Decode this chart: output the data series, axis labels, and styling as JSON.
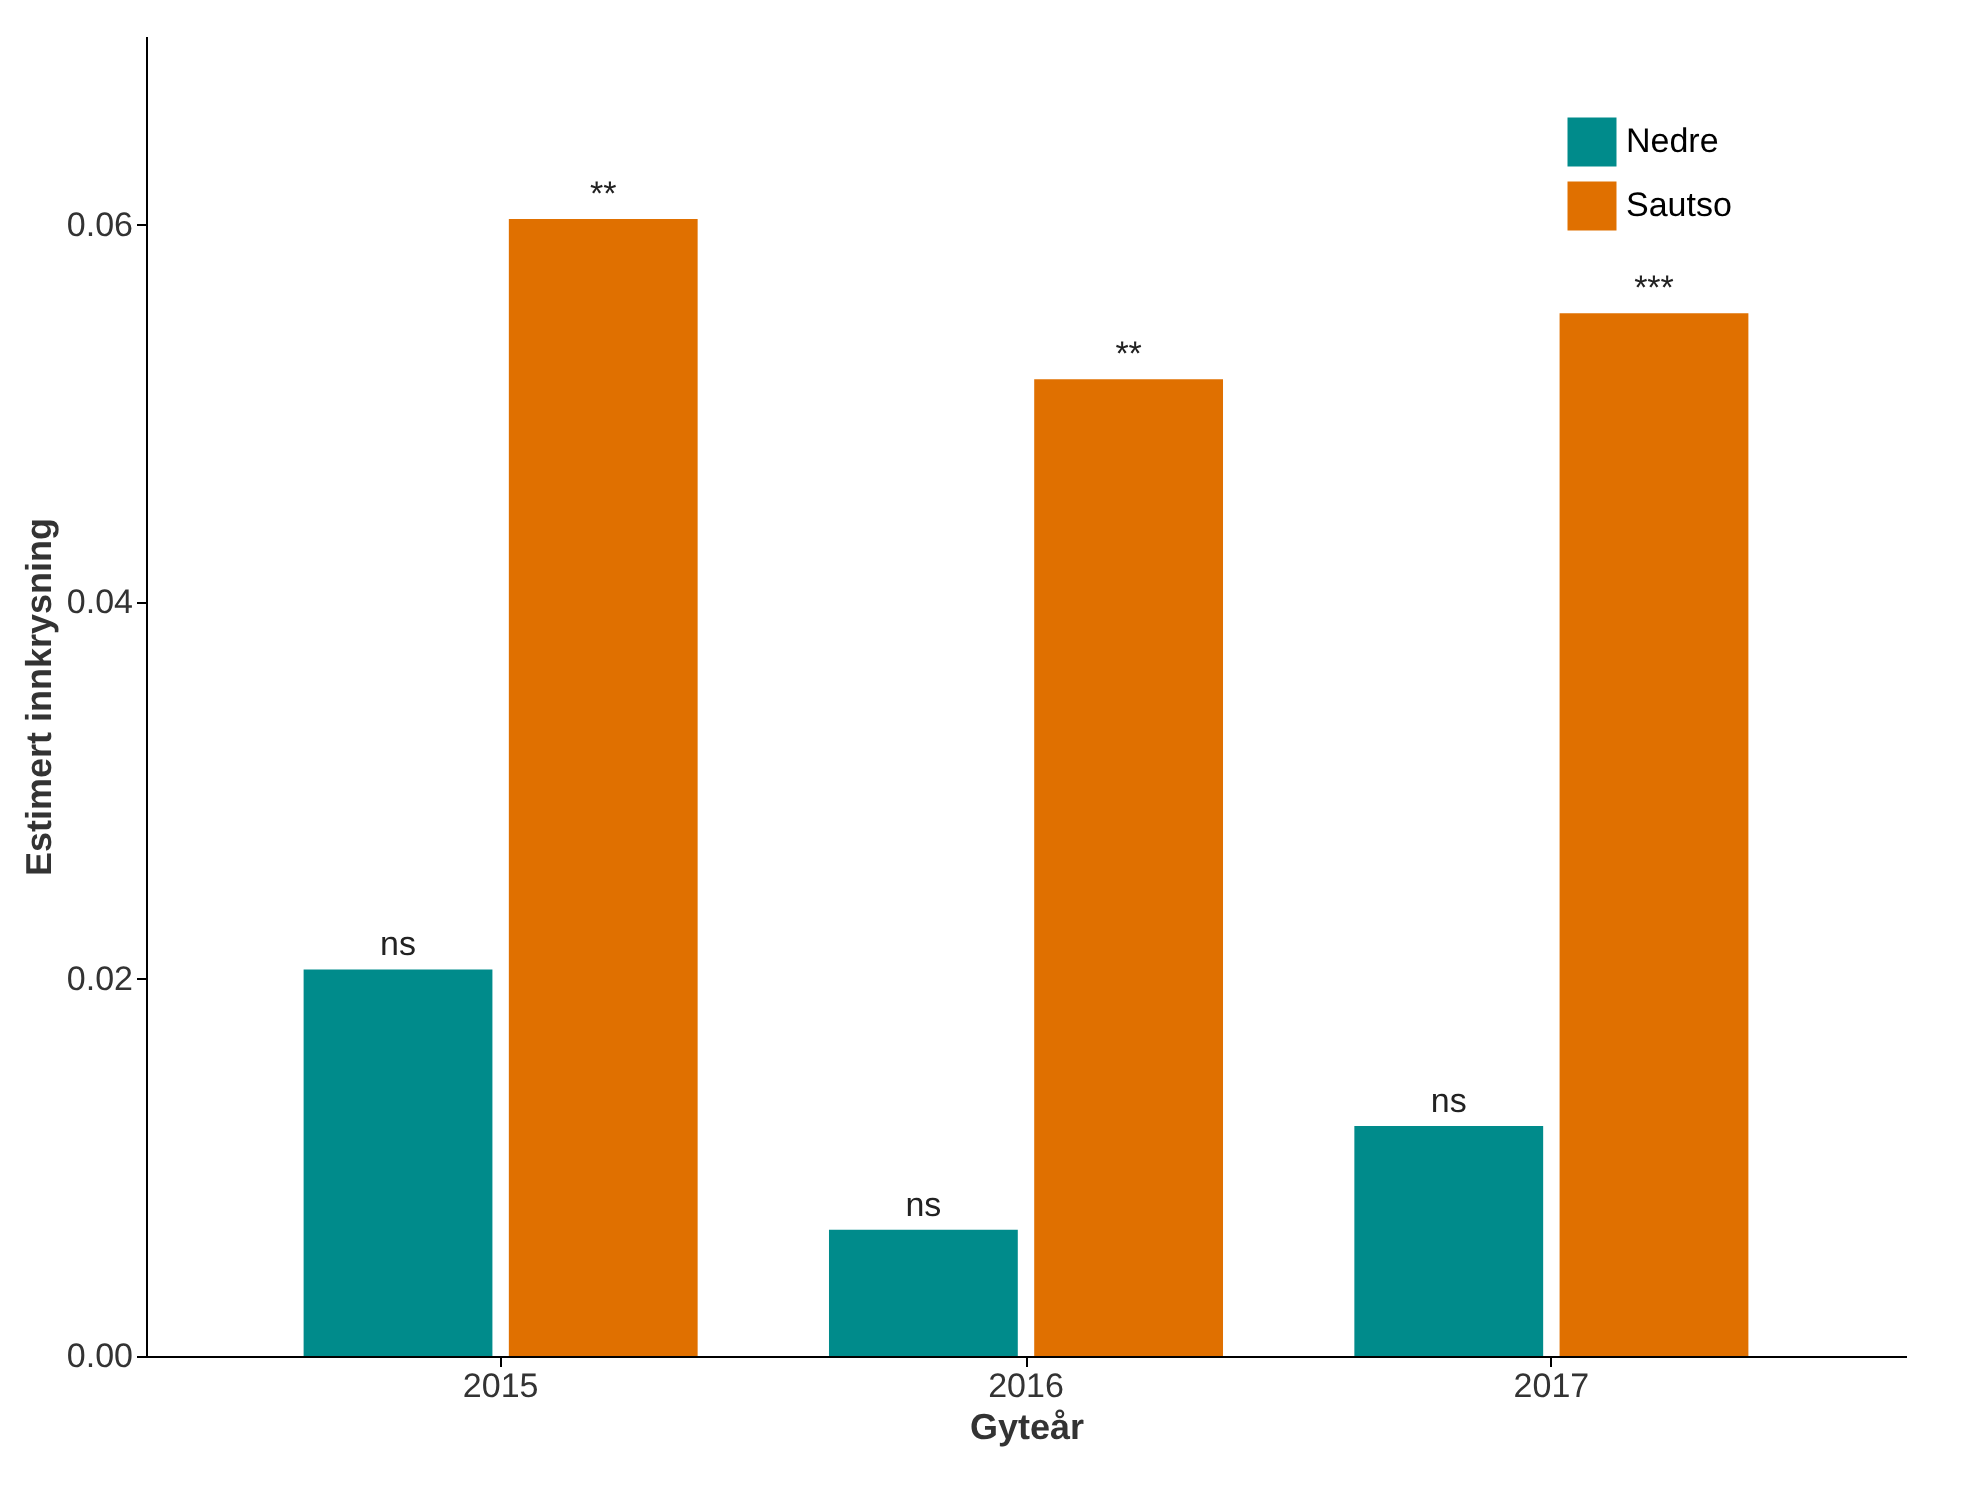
{
  "chart_data": {
    "type": "bar",
    "xlabel": "Gyteår",
    "ylabel": "Estimert innkrysning",
    "categories": [
      "2015",
      "2016",
      "2017"
    ],
    "series": [
      {
        "name": "Nedre",
        "color": "#008b8b",
        "values": [
          0.0205,
          0.0067,
          0.0122
        ],
        "value_labels": [
          "ns",
          "ns",
          "ns"
        ]
      },
      {
        "name": "Sautso",
        "color": "#e07000",
        "values": [
          0.0603,
          0.0518,
          0.0553
        ],
        "value_labels": [
          "**",
          "**",
          "***"
        ]
      }
    ],
    "ylim": [
      0,
      0.07
    ],
    "yticks": [
      {
        "value": 0,
        "label": "0.00"
      },
      {
        "value": 0.02,
        "label": "0.02"
      },
      {
        "value": 0.04,
        "label": "0.04"
      },
      {
        "value": 0.06,
        "label": "0.06"
      }
    ],
    "grid": false,
    "legend": "top right"
  }
}
